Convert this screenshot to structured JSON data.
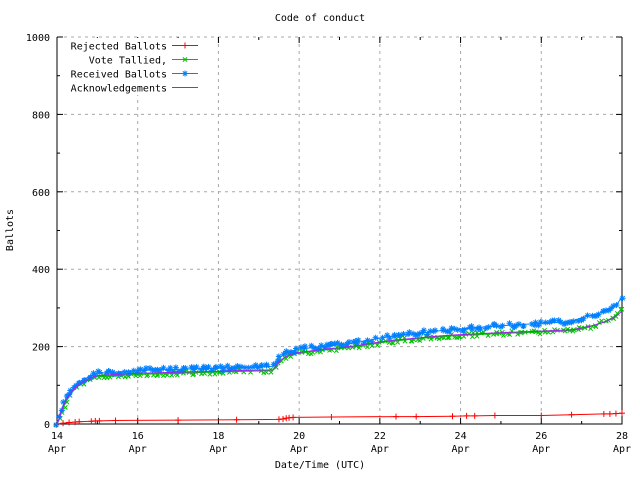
{
  "chart_data": {
    "type": "line",
    "title": "Code of conduct",
    "xlabel": "Date/Time (UTC)",
    "ylabel": "Ballots",
    "xlim": [
      14,
      28
    ],
    "ylim": [
      0,
      1000
    ],
    "grid": true,
    "legend_position": "top-left",
    "colors": {
      "grid": "#a8a8a8",
      "border": "#000000",
      "background": "#ffffff",
      "text": "#000000"
    },
    "x_ticks": [
      {
        "v": 14,
        "l1": "14",
        "l2": "Apr"
      },
      {
        "v": 16,
        "l1": "16",
        "l2": "Apr"
      },
      {
        "v": 18,
        "l1": "18",
        "l2": "Apr"
      },
      {
        "v": 20,
        "l1": "20",
        "l2": "Apr"
      },
      {
        "v": 22,
        "l1": "22",
        "l2": "Apr"
      },
      {
        "v": 24,
        "l1": "24",
        "l2": "Apr"
      },
      {
        "v": 26,
        "l1": "26",
        "l2": "Apr"
      },
      {
        "v": 28,
        "l1": "28",
        "l2": "Apr"
      }
    ],
    "x_minor": [
      15,
      17,
      19,
      21,
      23,
      25,
      27
    ],
    "y_ticks": [
      {
        "v": 0,
        "label": "0"
      },
      {
        "v": 200,
        "label": "200"
      },
      {
        "v": 400,
        "label": "400"
      },
      {
        "v": 600,
        "label": "600"
      },
      {
        "v": 800,
        "label": "800"
      },
      {
        "v": 1000,
        "label": "1000"
      }
    ],
    "y_minor": [
      100,
      300,
      500,
      700,
      900
    ],
    "series": [
      {
        "name": "Rejected Ballots",
        "color": "#ff0000",
        "marker": "plus",
        "marker_style": "each-point",
        "points": [
          [
            14,
            0
          ],
          [
            14.15,
            2
          ],
          [
            14.3,
            4
          ],
          [
            14.45,
            5
          ],
          [
            14.55,
            6
          ],
          [
            14.85,
            7
          ],
          [
            14.95,
            8
          ],
          [
            15.05,
            8
          ],
          [
            15.45,
            9
          ],
          [
            17,
            10
          ],
          [
            18.45,
            11
          ],
          [
            19.5,
            12
          ],
          [
            19.6,
            13
          ],
          [
            19.68,
            15
          ],
          [
            19.75,
            16
          ],
          [
            19.85,
            17
          ],
          [
            20.8,
            18
          ],
          [
            22.4,
            19
          ],
          [
            22.9,
            19
          ],
          [
            23.8,
            20
          ],
          [
            24.15,
            21
          ],
          [
            24.35,
            21
          ],
          [
            24.85,
            22
          ],
          [
            26,
            22
          ],
          [
            26.75,
            24
          ],
          [
            27.55,
            26
          ],
          [
            27.7,
            26
          ],
          [
            27.85,
            27
          ],
          [
            28,
            28
          ]
        ]
      },
      {
        "name": "Vote Tallied,",
        "color": "#00c000",
        "marker": "cross",
        "marker_style": "dense-band",
        "points": [
          [
            14,
            0
          ],
          [
            14.05,
            10
          ],
          [
            14.1,
            28
          ],
          [
            14.2,
            53
          ],
          [
            14.3,
            71
          ],
          [
            14.4,
            85
          ],
          [
            14.5,
            96
          ],
          [
            14.6,
            103
          ],
          [
            14.7,
            109
          ],
          [
            14.8,
            114
          ],
          [
            14.9,
            119
          ],
          [
            15,
            122
          ],
          [
            15.3,
            124
          ],
          [
            15.6,
            126
          ],
          [
            16,
            128
          ],
          [
            16.5,
            130
          ],
          [
            17,
            131
          ],
          [
            17.5,
            133
          ],
          [
            18,
            134
          ],
          [
            18.5,
            136
          ],
          [
            19,
            137
          ],
          [
            19.35,
            139
          ],
          [
            19.5,
            159
          ],
          [
            19.65,
            171
          ],
          [
            19.8,
            178
          ],
          [
            20,
            183
          ],
          [
            20.3,
            187
          ],
          [
            20.6,
            191
          ],
          [
            21,
            195
          ],
          [
            21.4,
            200
          ],
          [
            21.7,
            205
          ],
          [
            22,
            210
          ],
          [
            22.3,
            214
          ],
          [
            22.6,
            217
          ],
          [
            23,
            221
          ],
          [
            23.4,
            225
          ],
          [
            23.8,
            228
          ],
          [
            24.2,
            230
          ],
          [
            24.6,
            232
          ],
          [
            25,
            234
          ],
          [
            25.5,
            236
          ],
          [
            26,
            238
          ],
          [
            26.5,
            240
          ],
          [
            26.8,
            242
          ],
          [
            27,
            246
          ],
          [
            27.3,
            254
          ],
          [
            27.6,
            265
          ],
          [
            27.8,
            277
          ],
          [
            27.9,
            287
          ],
          [
            28,
            301
          ]
        ]
      },
      {
        "name": "Received Ballots",
        "color": "#0080ff",
        "marker": "star",
        "marker_style": "dense-band",
        "points": [
          [
            14,
            0
          ],
          [
            14.05,
            14
          ],
          [
            14.1,
            34
          ],
          [
            14.2,
            62
          ],
          [
            14.3,
            80
          ],
          [
            14.4,
            93
          ],
          [
            14.5,
            104
          ],
          [
            14.6,
            111
          ],
          [
            14.7,
            117
          ],
          [
            14.8,
            123
          ],
          [
            14.9,
            128
          ],
          [
            15,
            131
          ],
          [
            15.3,
            133
          ],
          [
            15.6,
            135
          ],
          [
            16,
            138
          ],
          [
            16.5,
            140
          ],
          [
            17,
            141
          ],
          [
            17.5,
            143
          ],
          [
            18,
            144
          ],
          [
            18.5,
            146
          ],
          [
            19,
            147
          ],
          [
            19.35,
            149
          ],
          [
            19.5,
            170
          ],
          [
            19.65,
            181
          ],
          [
            19.8,
            188
          ],
          [
            20,
            193
          ],
          [
            20.3,
            197
          ],
          [
            20.6,
            201
          ],
          [
            21,
            205
          ],
          [
            21.4,
            210
          ],
          [
            21.7,
            216
          ],
          [
            22,
            222
          ],
          [
            22.3,
            227
          ],
          [
            22.6,
            231
          ],
          [
            23,
            235
          ],
          [
            23.4,
            240
          ],
          [
            23.8,
            244
          ],
          [
            24.2,
            247
          ],
          [
            24.6,
            251
          ],
          [
            25,
            254
          ],
          [
            25.5,
            257
          ],
          [
            26,
            260
          ],
          [
            26.5,
            263
          ],
          [
            26.8,
            266
          ],
          [
            27,
            275
          ],
          [
            27.3,
            282
          ],
          [
            27.6,
            292
          ],
          [
            27.8,
            303
          ],
          [
            27.9,
            313
          ],
          [
            28,
            330
          ]
        ]
      },
      {
        "name": "Acknowledgements",
        "color": "#a020f0",
        "marker": "none",
        "marker_style": "none",
        "points": [
          [
            14,
            0
          ],
          [
            14.05,
            12
          ],
          [
            14.1,
            31
          ],
          [
            14.2,
            57
          ],
          [
            14.3,
            75
          ],
          [
            14.4,
            88
          ],
          [
            14.5,
            99
          ],
          [
            14.6,
            106
          ],
          [
            14.7,
            112
          ],
          [
            14.8,
            117
          ],
          [
            14.9,
            122
          ],
          [
            15,
            125
          ],
          [
            15.3,
            127
          ],
          [
            15.6,
            129
          ],
          [
            16,
            131
          ],
          [
            16.5,
            132
          ],
          [
            17,
            134
          ],
          [
            17.5,
            135
          ],
          [
            18,
            136
          ],
          [
            18.5,
            138
          ],
          [
            19,
            139
          ],
          [
            19.35,
            140
          ],
          [
            19.5,
            161
          ],
          [
            19.65,
            173
          ],
          [
            19.8,
            180
          ],
          [
            20,
            185
          ],
          [
            20.3,
            189
          ],
          [
            20.6,
            193
          ],
          [
            21,
            197
          ],
          [
            21.4,
            202
          ],
          [
            21.7,
            207
          ],
          [
            22,
            212
          ],
          [
            22.3,
            216
          ],
          [
            22.6,
            219
          ],
          [
            23,
            223
          ],
          [
            23.4,
            227
          ],
          [
            23.8,
            230
          ],
          [
            24.2,
            232
          ],
          [
            24.6,
            234
          ],
          [
            25,
            236
          ],
          [
            25.5,
            238
          ],
          [
            26,
            240
          ],
          [
            26.5,
            242
          ],
          [
            26.8,
            244
          ],
          [
            27,
            248
          ],
          [
            27.3,
            255
          ],
          [
            27.6,
            265
          ],
          [
            27.8,
            275
          ],
          [
            27.9,
            283
          ],
          [
            28,
            292
          ]
        ]
      }
    ]
  }
}
